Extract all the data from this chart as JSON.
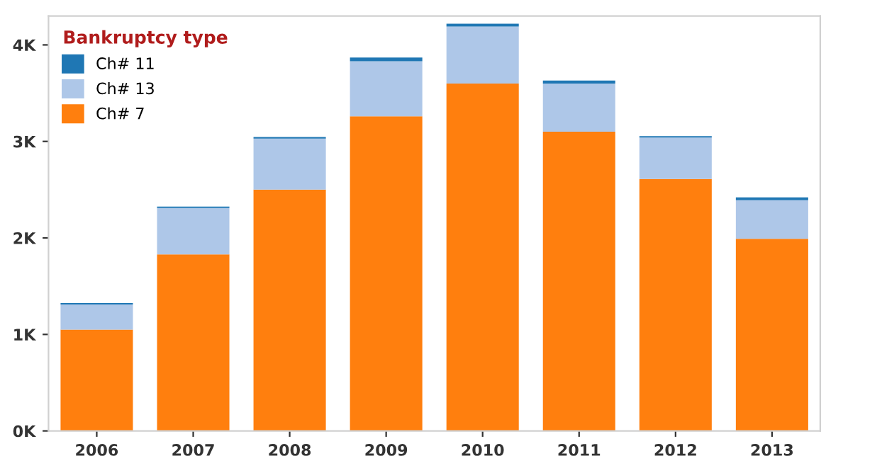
{
  "chart_data": {
    "type": "bar",
    "stacked": true,
    "legend_title": "Bankruptcy type",
    "legend": "top left",
    "grid": false,
    "categories": [
      "2006",
      "2007",
      "2008",
      "2009",
      "2010",
      "2011",
      "2012",
      "2013"
    ],
    "series": [
      {
        "name": "Ch# 7",
        "color": "#ff7f0e",
        "values": [
          1050,
          1830,
          2500,
          3260,
          3600,
          3100,
          2610,
          1990
        ]
      },
      {
        "name": "Ch# 13",
        "color": "#aec7e8",
        "values": [
          260,
          480,
          530,
          570,
          590,
          500,
          430,
          400
        ]
      },
      {
        "name": "Ch# 11",
        "color": "#1f77b4",
        "values": [
          15,
          15,
          15,
          40,
          30,
          30,
          15,
          30
        ]
      }
    ],
    "ylim": [
      0,
      4300
    ],
    "yticks": [
      {
        "value": 0,
        "label": "0K"
      },
      {
        "value": 1000,
        "label": "1K"
      },
      {
        "value": 2000,
        "label": "2K"
      },
      {
        "value": 3000,
        "label": "3K"
      },
      {
        "value": 4000,
        "label": "4K"
      }
    ]
  }
}
